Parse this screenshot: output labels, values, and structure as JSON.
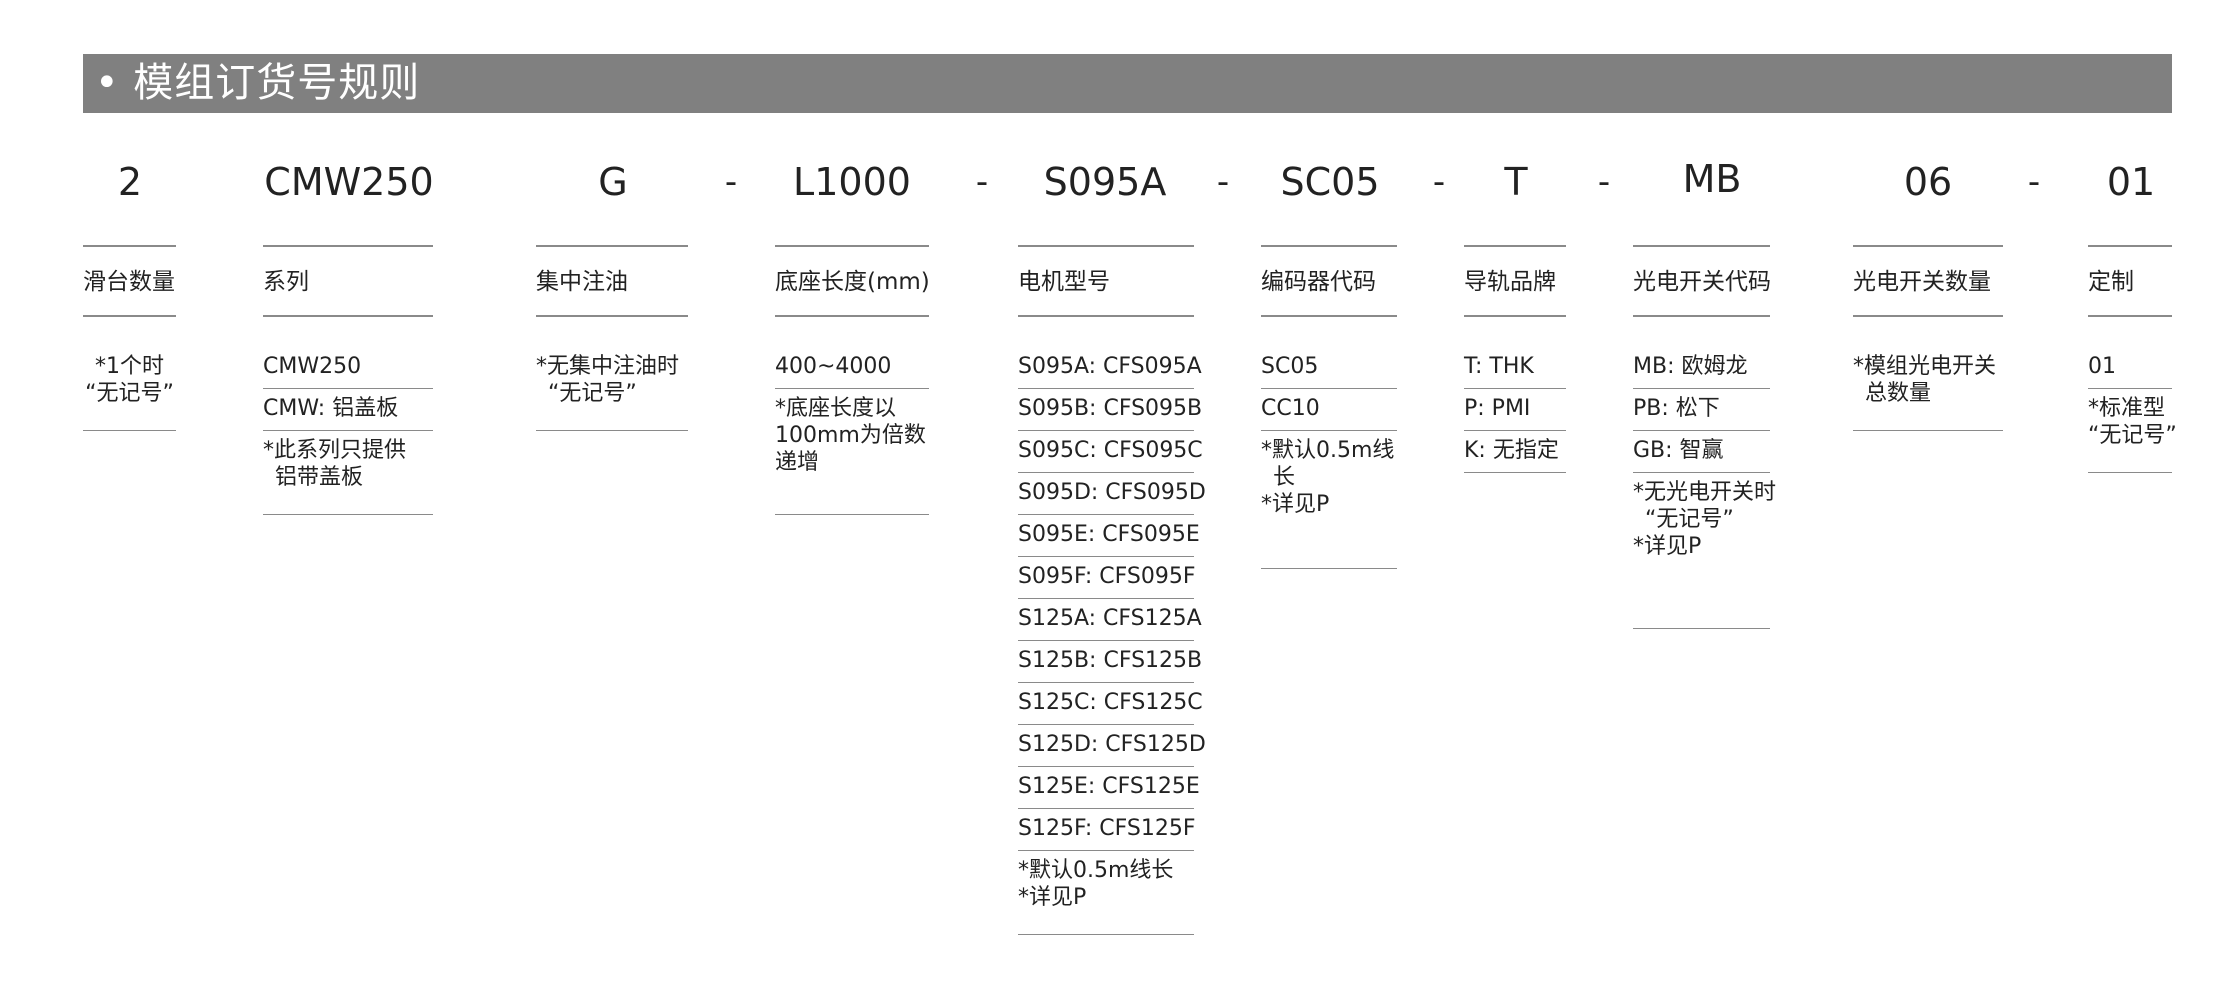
{
  "title": "• 模组订货号规则",
  "columns": [
    {
      "code": "2",
      "label": "滑台数量",
      "cells": [
        {
          "lines": [
            "*1个时",
            "“无记号”"
          ]
        }
      ]
    },
    {
      "code": "CMW250",
      "label": "系列",
      "cells": [
        {
          "lines": [
            "CMW250"
          ]
        },
        {
          "lines": [
            "CMW: 铝盖板"
          ]
        },
        {
          "lines": [
            "*此系列只提供",
            "铝带盖板"
          ]
        }
      ]
    },
    {
      "code": "G",
      "label": "集中注油",
      "dash_after": "-",
      "cells": [
        {
          "lines": [
            "*无集中注油时",
            "“无记号”"
          ]
        }
      ]
    },
    {
      "code": "L1000",
      "label": "底座长度(mm)",
      "dash_after": "-",
      "cells": [
        {
          "lines": [
            "400~4000"
          ]
        },
        {
          "lines": [
            "*底座长度以",
            "100mm为倍数",
            "递增"
          ]
        }
      ]
    },
    {
      "code": "S095A",
      "label": "电机型号",
      "dash_after": "-",
      "cells": [
        {
          "lines": [
            "S095A: CFS095A"
          ]
        },
        {
          "lines": [
            "S095B: CFS095B"
          ]
        },
        {
          "lines": [
            "S095C: CFS095C"
          ]
        },
        {
          "lines": [
            "S095D: CFS095D"
          ]
        },
        {
          "lines": [
            "S095E: CFS095E"
          ]
        },
        {
          "lines": [
            "S095F: CFS095F"
          ]
        },
        {
          "lines": [
            "S125A: CFS125A"
          ]
        },
        {
          "lines": [
            "S125B: CFS125B"
          ]
        },
        {
          "lines": [
            "S125C: CFS125C"
          ]
        },
        {
          "lines": [
            "S125D: CFS125D"
          ]
        },
        {
          "lines": [
            "S125E: CFS125E"
          ]
        },
        {
          "lines": [
            "S125F: CFS125F"
          ]
        },
        {
          "lines": [
            "*默认0.5m线长",
            "*详见P"
          ]
        }
      ]
    },
    {
      "code": "SC05",
      "label": "编码器代码",
      "dash_after": "-",
      "cells": [
        {
          "lines": [
            "SC05"
          ]
        },
        {
          "lines": [
            "CC10"
          ]
        },
        {
          "lines": [
            "*默认0.5m线",
            "长",
            "*详见P"
          ]
        }
      ]
    },
    {
      "code": "T",
      "label": "导轨品牌",
      "dash_after": "-",
      "cells": [
        {
          "lines": [
            "T: THK"
          ]
        },
        {
          "lines": [
            "P: PMI"
          ]
        },
        {
          "lines": [
            "K: 无指定"
          ]
        }
      ]
    },
    {
      "code": "MB",
      "label": "光电开关代码",
      "cells": [
        {
          "lines": [
            "MB: 欧姆龙"
          ]
        },
        {
          "lines": [
            "PB: 松下"
          ]
        },
        {
          "lines": [
            "GB: 智赢"
          ]
        },
        {
          "lines": [
            "*无光电开关时",
            "“无记号”",
            "*详见P"
          ]
        }
      ]
    },
    {
      "code": "06",
      "label": "光电开关数量",
      "dash_after": "-",
      "cells": [
        {
          "lines": [
            "*模组光电开关",
            "总数量"
          ]
        }
      ]
    },
    {
      "code": "01",
      "label": "定制",
      "cells": [
        {
          "lines": [
            "01"
          ]
        },
        {
          "lines": [
            "*标准型",
            "“无记号”"
          ]
        }
      ]
    }
  ]
}
